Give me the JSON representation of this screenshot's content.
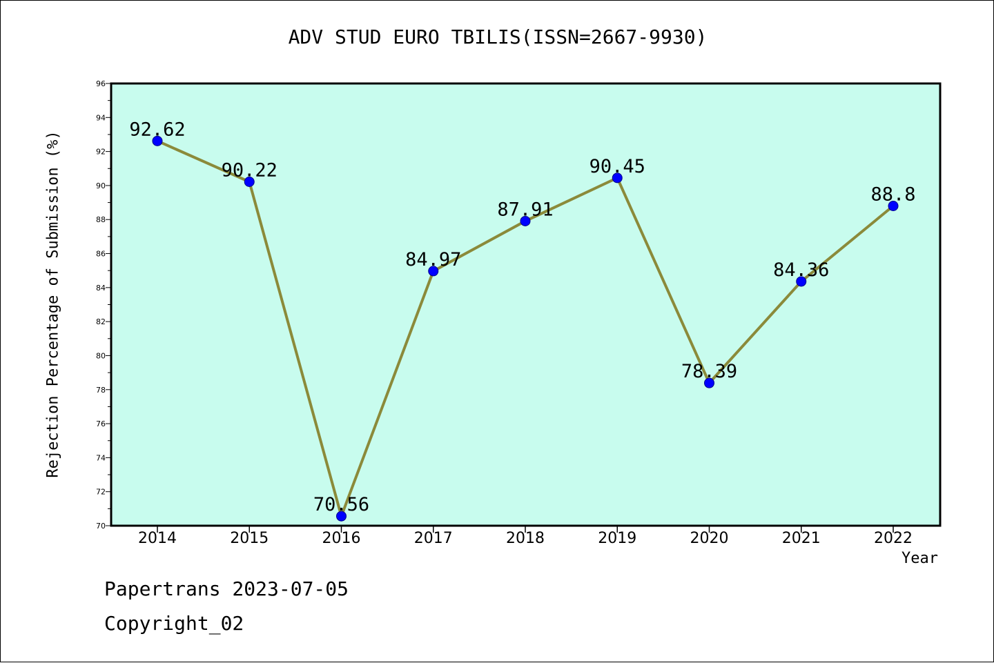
{
  "chart_data": {
    "type": "line",
    "title": "ADV STUD EURO TBILIS(ISSN=2667-9930)",
    "xlabel": "Year",
    "ylabel": "Rejection Percentage of Submission (%)",
    "categories": [
      "2014",
      "2015",
      "2016",
      "2017",
      "2018",
      "2019",
      "2020",
      "2021",
      "2022"
    ],
    "series": [
      {
        "values": [
          92.62,
          90.22,
          70.56,
          84.97,
          87.91,
          90.45,
          78.39,
          84.36,
          88.8
        ],
        "labels": [
          "92.62",
          "90.22",
          "70.56",
          "84.97",
          "87.91",
          "90.45",
          "78.39",
          "84.36",
          "88.8"
        ]
      }
    ],
    "ylim": [
      70,
      96
    ],
    "yticks": [
      "70",
      "72",
      "74",
      "76",
      "78",
      "80",
      "82",
      "84",
      "86",
      "88",
      "90",
      "92",
      "94",
      "96"
    ],
    "grid": false,
    "colors": {
      "plot_background": "#c8fcee",
      "line": "#8b8a3a",
      "marker": "#0000ff"
    }
  },
  "footer": {
    "date_line": "Papertrans 2023-07-05",
    "copyright_line": "Copyright_02"
  }
}
